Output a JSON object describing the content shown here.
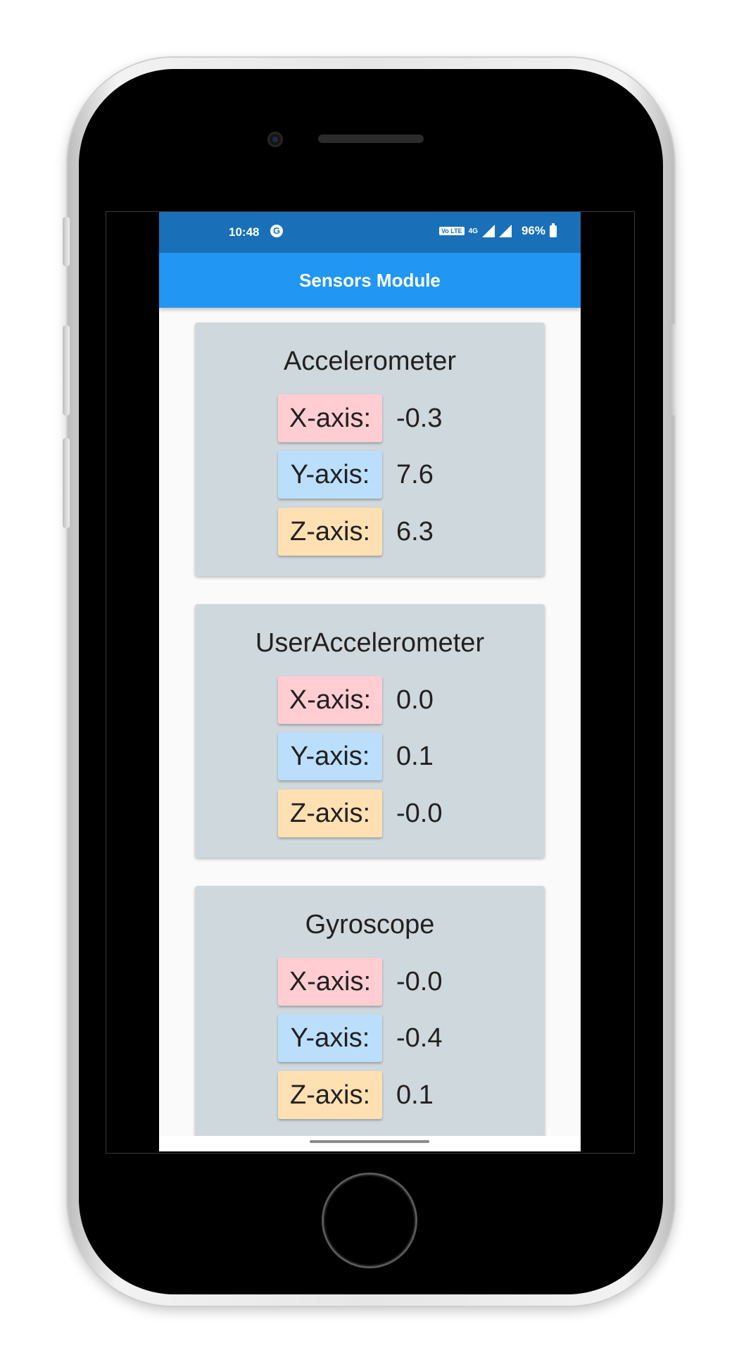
{
  "status_bar": {
    "time": "10:48",
    "g_icon": "G",
    "network_badge": "Vo LTE",
    "network_type": "4G",
    "battery": "96%"
  },
  "app_bar": {
    "title": "Sensors Module"
  },
  "colors": {
    "status_bar": "#1a70b8",
    "app_bar": "#2196f3",
    "card": "#cfd8dc",
    "x_axis_bg": "#ffcdd2",
    "y_axis_bg": "#bbdefb",
    "z_axis_bg": "#ffe0b2"
  },
  "cards": [
    {
      "title": "Accelerometer",
      "rows": [
        {
          "label": "X-axis:",
          "value": "-0.3"
        },
        {
          "label": "Y-axis:",
          "value": "7.6"
        },
        {
          "label": "Z-axis:",
          "value": "6.3"
        }
      ]
    },
    {
      "title": "UserAccelerometer",
      "rows": [
        {
          "label": "X-axis:",
          "value": "0.0"
        },
        {
          "label": "Y-axis:",
          "value": "0.1"
        },
        {
          "label": "Z-axis:",
          "value": "-0.0"
        }
      ]
    },
    {
      "title": "Gyroscope",
      "rows": [
        {
          "label": "X-axis:",
          "value": "-0.0"
        },
        {
          "label": "Y-axis:",
          "value": "-0.4"
        },
        {
          "label": "Z-axis:",
          "value": "0.1"
        }
      ]
    }
  ]
}
